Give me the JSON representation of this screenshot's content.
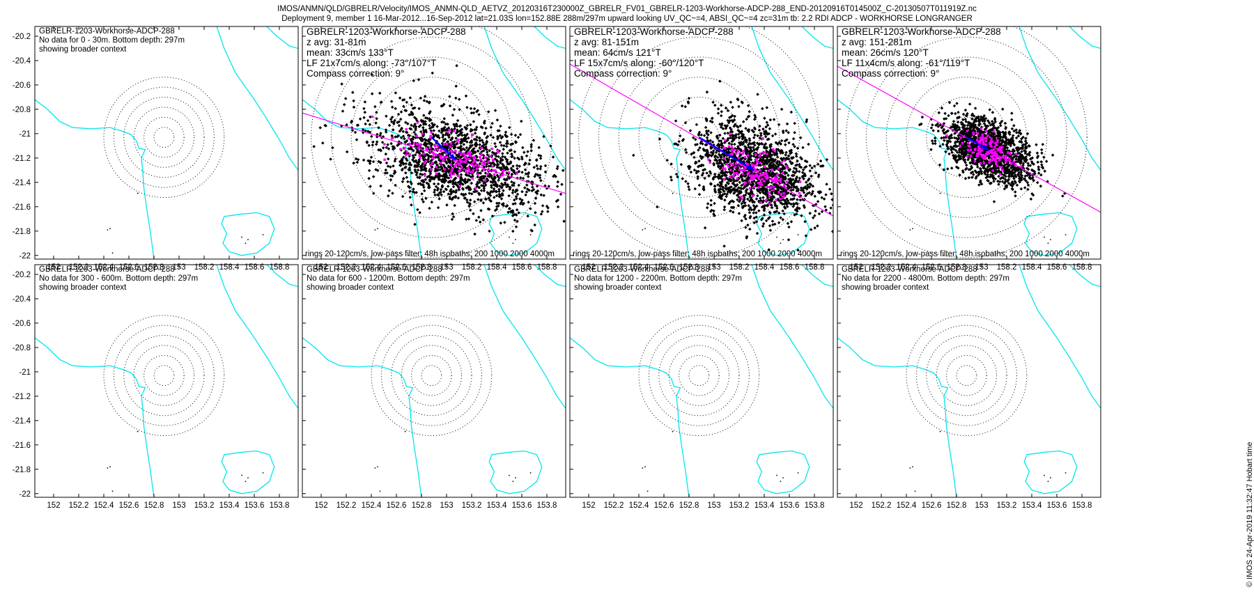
{
  "figure": {
    "title_line1": "IMOS/ANMN/QLD/GBRELR/Velocity/IMOS_ANMN-QLD_AETVZ_20120316T230000Z_GBRELR_FV01_GBRELR-1203-Workhorse-ADCP-288_END-20120916T014500Z_C-20130507T011919Z.nc",
    "title_line2": "Deployment 9, member 1 16-Mar-2012...16-Sep-2012 lat=21.03S lon=152.88E 288m/297m upward looking UV_QC~=4, ABSI_QC~=4 zc=31m tb: 2.2 RDI ADCP - WORKHORSE LONGRANGER",
    "side_note": "© IMOS 24-Apr-2019 11:32:47 Hobart time"
  },
  "colors": {
    "coastline": "#00e5ee",
    "scatter": "#000000",
    "lowpass": "#ff00ff",
    "mean_arrow": "#0000ff",
    "rings": "#000000"
  },
  "chart_data": [
    {
      "type": "scatter",
      "title": "GBRELR-1203-Workhorse-ADCP-288",
      "has_data": false,
      "lines": [
        "No data for 0 - 30m. Bottom depth: 297m",
        "showing broader context"
      ],
      "xlim": [
        151.85,
        153.95
      ],
      "ylim": [
        -22.03,
        -20.12
      ],
      "x_ticks": [
        "152",
        "152.2",
        "152.4",
        "152.6",
        "152.8",
        "153",
        "153.2",
        "153.4",
        "153.6",
        "153.8"
      ],
      "y_ticks": [
        "-20.2",
        "-20.4",
        "-20.6",
        "-20.8",
        "-21",
        "-21.2",
        "-21.4",
        "-21.6",
        "-21.8",
        "-22"
      ],
      "rings_center": [
        152.88,
        -21.03
      ],
      "rings_step_deg": 0.08,
      "rings_count": 6
    },
    {
      "type": "scatter",
      "title": "GBRELR-1203-Workhorse-ADCP-288",
      "has_data": true,
      "lines": [
        "z avg: 31-81m",
        "mean: 33cm/s 133°T",
        "LF 21x7cm/s along: -73°/107°T",
        "Compass correction: 9°"
      ],
      "footer": "rings 20-120cm/s, low-pass filter: 48h isobaths: 200 1000 2000 4000m",
      "xlim": [
        151.85,
        153.95
      ],
      "ylim": [
        -22.03,
        -20.12
      ],
      "x_ticks": [
        "152",
        "152.2",
        "152.4",
        "152.6",
        "152.8",
        "153",
        "153.2",
        "153.4",
        "153.6",
        "153.8"
      ],
      "rings_center": [
        152.88,
        -21.03
      ],
      "rings_step_deg": 0.16,
      "rings_count": 6,
      "mean_dir_deg": 133,
      "mean_speed_cms": 33,
      "lowpass_axis_deg": 107,
      "spread_major": 21,
      "spread_minor": 7
    },
    {
      "type": "scatter",
      "title": "GBRELR-1203-Workhorse-ADCP-288",
      "has_data": true,
      "lines": [
        "z avg: 81-151m",
        "mean: 64cm/s 121°T",
        "LF 15x7cm/s along: -60°/120°T",
        "Compass correction: 9°"
      ],
      "footer": "rings 20-120cm/s, low-pass filter: 48h isobaths: 200 1000 2000 4000m",
      "xlim": [
        151.85,
        153.95
      ],
      "ylim": [
        -22.03,
        -20.12
      ],
      "x_ticks": [
        "152",
        "152.2",
        "152.4",
        "152.6",
        "152.8",
        "153",
        "153.2",
        "153.4",
        "153.6",
        "153.8"
      ],
      "rings_center": [
        152.88,
        -21.03
      ],
      "rings_step_deg": 0.16,
      "rings_count": 6,
      "mean_dir_deg": 121,
      "mean_speed_cms": 64,
      "lowpass_axis_deg": 120,
      "spread_major": 15,
      "spread_minor": 7
    },
    {
      "type": "scatter",
      "title": "GBRELR-1203-Workhorse-ADCP-288",
      "has_data": true,
      "lines": [
        "z avg: 151-281m",
        "mean: 26cm/s 120°T",
        "LF 11x4cm/s along: -61°/119°T",
        "Compass correction: 9°"
      ],
      "footer": "rings 20-120cm/s, low-pass filter: 48h.isobaths: 200 1000 2000 4000m",
      "xlim": [
        151.85,
        153.95
      ],
      "ylim": [
        -22.03,
        -20.12
      ],
      "x_ticks": [
        "152",
        "152.2",
        "152.4",
        "152.6",
        "152.8",
        "153",
        "153.2",
        "153.4",
        "153.6",
        "153.8"
      ],
      "rings_center": [
        152.88,
        -21.03
      ],
      "rings_step_deg": 0.16,
      "rings_count": 6,
      "mean_dir_deg": 120,
      "mean_speed_cms": 26,
      "lowpass_axis_deg": 119,
      "spread_major": 11,
      "spread_minor": 4
    },
    {
      "type": "scatter",
      "title": "GBRELR-1203-Workhorse-ADCP-288",
      "has_data": false,
      "lines": [
        "No data for 300 - 600m. Bottom depth: 297m",
        "showing broader context"
      ],
      "xlim": [
        151.85,
        153.95
      ],
      "ylim": [
        -22.03,
        -20.12
      ],
      "x_ticks": [
        "152",
        "152.2",
        "152.4",
        "152.6",
        "152.8",
        "153",
        "153.2",
        "153.4",
        "153.6",
        "153.8"
      ],
      "y_ticks": [
        "-20.2",
        "-20.4",
        "-20.6",
        "-20.8",
        "-21",
        "-21.2",
        "-21.4",
        "-21.6",
        "-21.8",
        "-22"
      ],
      "rings_center": [
        152.88,
        -21.03
      ],
      "rings_step_deg": 0.08,
      "rings_count": 6
    },
    {
      "type": "scatter",
      "title": "GBRELR-1203-Workhorse-ADCP-288",
      "has_data": false,
      "lines": [
        "No data for 600 - 1200m. Bottom depth: 297m",
        "showing broader context"
      ],
      "xlim": [
        151.85,
        153.95
      ],
      "ylim": [
        -22.03,
        -20.12
      ],
      "x_ticks": [
        "152",
        "152.2",
        "152.4",
        "152.6",
        "152.8",
        "153",
        "153.2",
        "153.4",
        "153.6",
        "153.8"
      ],
      "rings_center": [
        152.88,
        -21.03
      ],
      "rings_step_deg": 0.08,
      "rings_count": 6
    },
    {
      "type": "scatter",
      "title": "GBRELR-1203-Workhorse-ADCP-288",
      "has_data": false,
      "lines": [
        "No data for 1200 - 2200m. Bottom depth: 297m",
        "showing broader context"
      ],
      "xlim": [
        151.85,
        153.95
      ],
      "ylim": [
        -22.03,
        -20.12
      ],
      "x_ticks": [
        "152",
        "152.2",
        "152.4",
        "152.6",
        "152.8",
        "153",
        "153.2",
        "153.4",
        "153.6",
        "153.8"
      ],
      "rings_center": [
        152.88,
        -21.03
      ],
      "rings_step_deg": 0.08,
      "rings_count": 6
    },
    {
      "type": "scatter",
      "title": "GBRELR-1203-Workhorse-ADCP-288",
      "has_data": false,
      "lines": [
        "No data for 2200 - 4800m. Bottom depth: 297m",
        "showing broader context"
      ],
      "xlim": [
        151.85,
        153.95
      ],
      "ylim": [
        -22.03,
        -20.12
      ],
      "x_ticks": [
        "152",
        "152.2",
        "152.4",
        "152.6",
        "152.8",
        "153",
        "153.2",
        "153.4",
        "153.6",
        "153.8"
      ],
      "rings_center": [
        152.88,
        -21.03
      ],
      "rings_step_deg": 0.08,
      "rings_count": 6
    }
  ]
}
